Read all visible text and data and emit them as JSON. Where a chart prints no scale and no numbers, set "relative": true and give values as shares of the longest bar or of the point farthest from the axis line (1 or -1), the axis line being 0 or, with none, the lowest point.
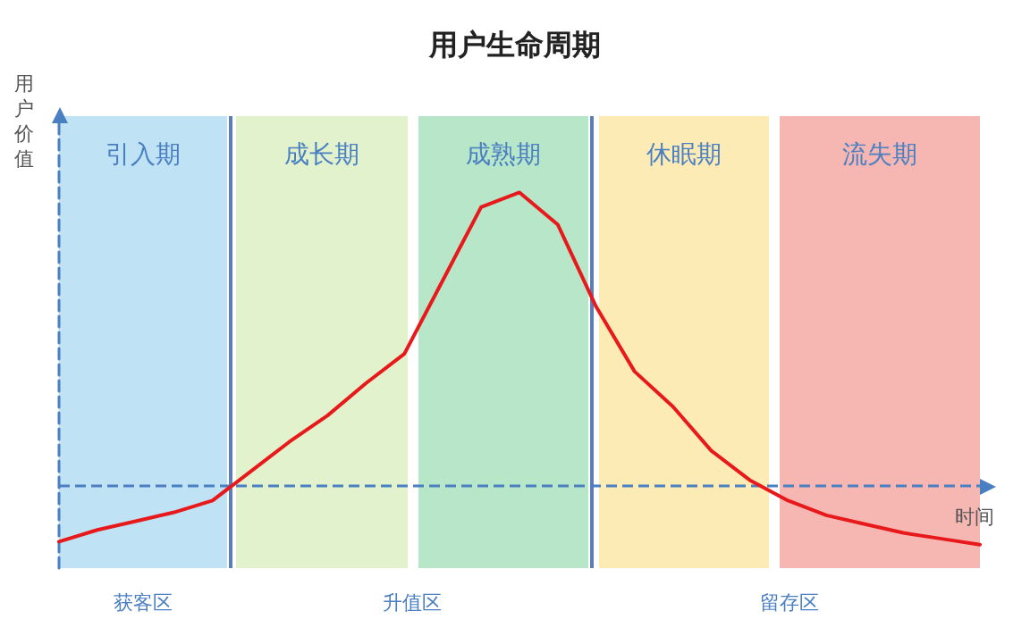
{
  "chart_data": {
    "type": "line",
    "title": "用户生命周期",
    "xlabel": "时间",
    "ylabel": "用户价值",
    "relative": true,
    "grid": false,
    "marker": "none",
    "line_style": "solid",
    "categories": [
      null,
      null,
      null,
      null,
      null,
      null,
      null,
      null,
      null,
      null,
      null,
      null,
      null,
      null,
      null,
      null,
      null,
      null,
      null,
      null,
      null,
      null,
      null,
      null,
      null
    ],
    "series": [
      {
        "color": "#e8191b",
        "values": [
          -0.19,
          -0.15,
          -0.12,
          -0.09,
          -0.05,
          0.05,
          0.15,
          0.24,
          0.35,
          0.45,
          0.7,
          0.95,
          1,
          0.89,
          0.61,
          0.39,
          0.27,
          0.12,
          0.02,
          -0.05,
          -0.1,
          -0.13,
          -0.16,
          -0.18,
          -0.2
        ]
      }
    ],
    "ref_lines": [
      {
        "axis": "y",
        "value": 0,
        "color": "#4a7fc1",
        "line_style": "dashed"
      }
    ],
    "annotations": [
      "引入期",
      "成长期",
      "成熟期",
      "休眠期",
      "流失期",
      "获客区",
      "升值区",
      "留存区"
    ]
  }
}
